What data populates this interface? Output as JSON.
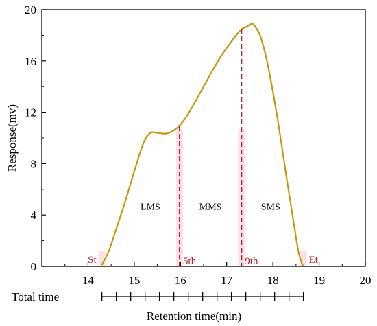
{
  "chart_data": {
    "type": "line",
    "xlabel": "Retention time(min)",
    "ylabel": "Response(mv)",
    "xlim": [
      13,
      20
    ],
    "ylim": [
      0,
      20
    ],
    "x_ticks": [
      14,
      15,
      16,
      17,
      18,
      19,
      20
    ],
    "y_ticks": [
      0,
      4,
      8,
      12,
      16,
      20
    ],
    "grid": false,
    "line_color": "#c8960c",
    "shade_color": "#f7c6d3",
    "marker_color": "#a52a2a",
    "series": [
      {
        "x": [
          14.3,
          14.45,
          14.6,
          14.8,
          15.0,
          15.2,
          15.35,
          15.5,
          15.7,
          15.9,
          16.1,
          16.3,
          16.5,
          16.7,
          16.9,
          17.1,
          17.3,
          17.45,
          17.55,
          17.65,
          17.75,
          17.9,
          18.1,
          18.3,
          18.45,
          18.55,
          18.62,
          18.66
        ],
        "y": [
          0.1,
          1.2,
          2.8,
          5.0,
          7.4,
          9.6,
          10.4,
          10.4,
          10.35,
          10.7,
          11.5,
          12.7,
          14.0,
          15.3,
          16.5,
          17.5,
          18.4,
          18.7,
          18.9,
          18.5,
          17.7,
          15.5,
          11.5,
          6.8,
          3.4,
          1.2,
          0.3,
          0.0
        ]
      }
    ],
    "dividers": [
      {
        "x": 15.98,
        "label": "5th"
      },
      {
        "x": 17.32,
        "label": "9th"
      }
    ],
    "endpoints": [
      {
        "x": 14.3,
        "label": "St"
      },
      {
        "x": 18.66,
        "label": "Et"
      }
    ],
    "regions": [
      {
        "x": 15.35,
        "y": 4.4,
        "label": "LMS"
      },
      {
        "x": 16.65,
        "y": 4.4,
        "label": "MMS"
      },
      {
        "x": 17.95,
        "y": 4.4,
        "label": "SMS"
      }
    ],
    "total_time_axis": {
      "label": "Total time",
      "start": 14.3,
      "end": 18.66,
      "tick_count": 14
    }
  }
}
